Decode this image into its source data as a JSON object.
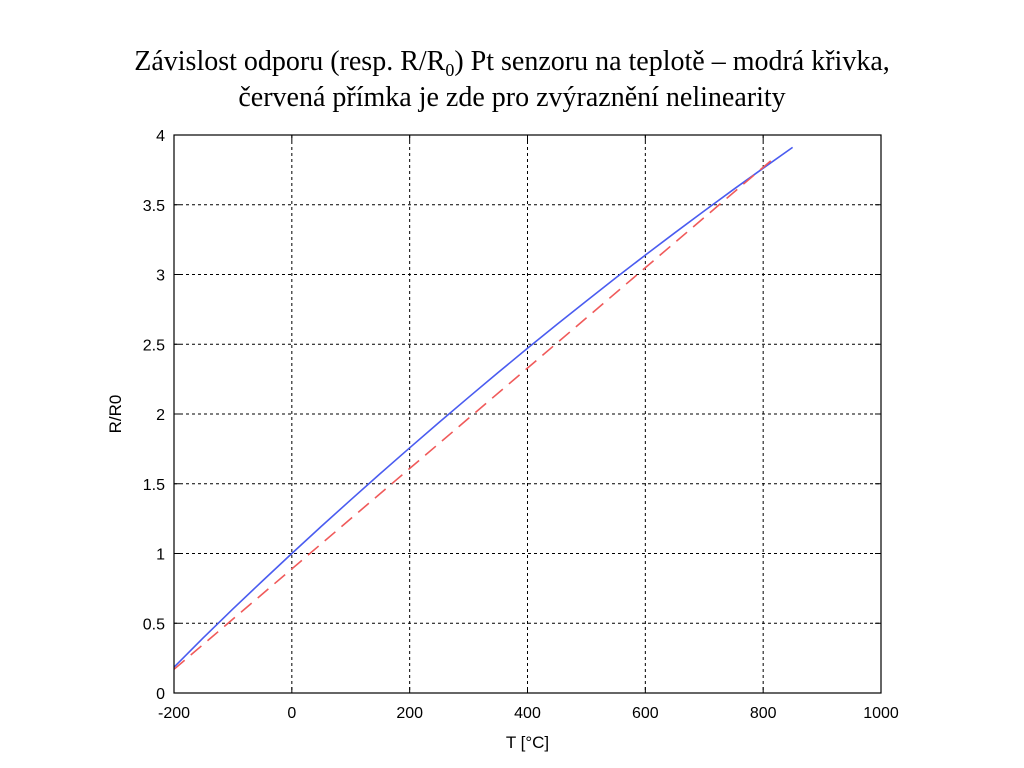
{
  "title": {
    "line1_before_sub": "Závislost odporu (resp. R/R",
    "line1_sub": "0",
    "line1_after_sub": ") Pt senzoru na teplotě – modrá křivka,",
    "line2": "červená přímka je zde pro zvýraznění nelinearity"
  },
  "chart_data": {
    "type": "line",
    "xlabel": "T [°C]",
    "ylabel": "R/R0",
    "xlim": [
      -200,
      1000
    ],
    "ylim": [
      0,
      4
    ],
    "xticks": [
      -200,
      0,
      200,
      400,
      600,
      800,
      1000
    ],
    "yticks": [
      0,
      0.5,
      1,
      1.5,
      2,
      2.5,
      3,
      3.5,
      4
    ],
    "xtick_labels": [
      "-200",
      "0",
      "200",
      "400",
      "600",
      "800",
      "1000"
    ],
    "ytick_labels": [
      "0",
      "0.5",
      "1",
      "1.5",
      "2",
      "2.5",
      "3",
      "3.5",
      "4"
    ],
    "grid": true,
    "series": [
      {
        "style": "solid",
        "color": "#4a5cf0",
        "x": [
          -200,
          -150,
          -100,
          -50,
          0,
          50,
          100,
          150,
          200,
          250,
          300,
          350,
          400,
          450,
          500,
          550,
          600,
          650,
          700,
          750,
          800,
          850
        ],
        "y": [
          0.185,
          0.397,
          0.603,
          0.803,
          1.0,
          1.194,
          1.385,
          1.573,
          1.758,
          1.94,
          2.12,
          2.297,
          2.471,
          2.642,
          2.81,
          2.976,
          3.139,
          3.299,
          3.456,
          3.611,
          3.762,
          3.911
        ]
      },
      {
        "style": "dashed",
        "color": "#f05a5a",
        "x": [
          -200,
          820
        ],
        "y": [
          0.17,
          3.84
        ]
      }
    ]
  }
}
